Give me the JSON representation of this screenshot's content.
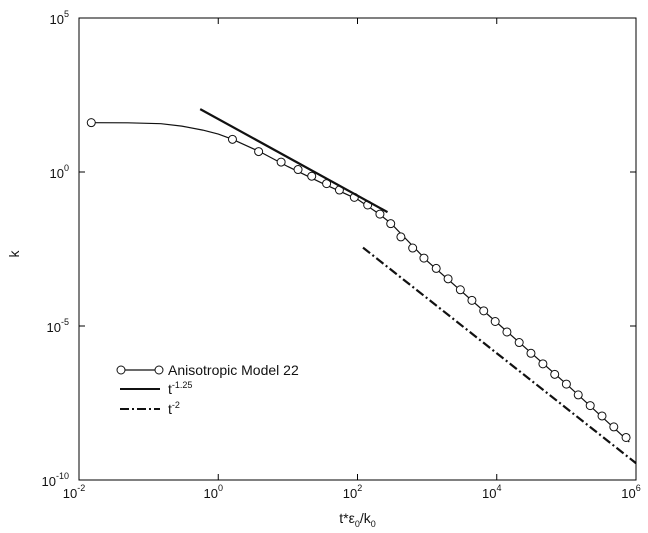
{
  "chart_data": {
    "type": "line",
    "xscale": "log",
    "yscale": "log",
    "xlim": [
      0.01,
      1000000
    ],
    "ylim": [
      1e-10,
      100000
    ],
    "xlabel": {
      "base": "t*ε",
      "sub1": "0",
      "mid": "/k",
      "sub2": "0"
    },
    "ylabel": "k",
    "x_ticks": [
      {
        "base": "10",
        "exp": "-2",
        "value": 0.01
      },
      {
        "base": "10",
        "exp": "0",
        "value": 1
      },
      {
        "base": "10",
        "exp": "2",
        "value": 100
      },
      {
        "base": "10",
        "exp": "4",
        "value": 10000
      },
      {
        "base": "10",
        "exp": "6",
        "value": 1000000
      }
    ],
    "y_ticks": [
      {
        "base": "10",
        "exp": "-10",
        "value": 1e-10
      },
      {
        "base": "10",
        "exp": "-5",
        "value": 1e-05
      },
      {
        "base": "10",
        "exp": "0",
        "value": 1
      },
      {
        "base": "10",
        "exp": "5",
        "value": 100000
      }
    ],
    "legend_position": "bottom-left",
    "grid": false,
    "series": [
      {
        "name": "Anisotropic Model 22",
        "style": "solid-circle-markers",
        "curve": [
          [
            0.015,
            40
          ],
          [
            0.05,
            39.5
          ],
          [
            0.15,
            37
          ],
          [
            0.3,
            31
          ],
          [
            0.6,
            23
          ],
          [
            1,
            17
          ],
          [
            1.6,
            11.5
          ],
          [
            4,
            4.5
          ],
          [
            10,
            1.5
          ],
          [
            30,
            0.45
          ],
          [
            100,
            0.13
          ],
          [
            200,
            0.045
          ],
          [
            300,
            0.022
          ],
          [
            1000,
            0.0013
          ],
          [
            10000,
            1.3e-05
          ],
          [
            100000,
            1.3e-07
          ],
          [
            800000,
            1.7e-09
          ]
        ],
        "markers": [
          [
            0.015,
            40
          ],
          [
            1.6,
            11.5
          ],
          [
            3.8,
            4.6
          ],
          [
            8,
            2.1
          ],
          [
            14,
            1.2
          ],
          [
            22,
            0.73
          ],
          [
            36,
            0.42
          ],
          [
            55,
            0.26
          ],
          [
            90,
            0.15
          ],
          [
            140,
            0.085
          ],
          [
            210,
            0.043
          ],
          [
            300,
            0.021
          ],
          [
            420,
            0.0078
          ],
          [
            620,
            0.0034
          ],
          [
            900,
            0.0016
          ],
          [
            1350,
            0.00074
          ],
          [
            2000,
            0.00034
          ],
          [
            3000,
            0.00015
          ],
          [
            4400,
            6.8e-05
          ],
          [
            6500,
            3.1e-05
          ],
          [
            9500,
            1.4e-05
          ],
          [
            14000,
            6.4e-06
          ],
          [
            21000,
            2.9e-06
          ],
          [
            31000,
            1.3e-06
          ],
          [
            46000,
            5.9e-07
          ],
          [
            68000,
            2.7e-07
          ],
          [
            100000,
            1.3e-07
          ],
          [
            148000,
            5.8e-08
          ],
          [
            220000,
            2.6e-08
          ],
          [
            325000,
            1.2e-08
          ],
          [
            480000,
            5.3e-09
          ],
          [
            720000,
            2.4e-09
          ]
        ]
      },
      {
        "name": "t",
        "name_sup": "-1.25",
        "style": "solid",
        "points": [
          [
            0.55,
            110
          ],
          [
            270,
            0.05
          ]
        ]
      },
      {
        "name": "t",
        "name_sup": "-2",
        "style": "dashdot",
        "points": [
          [
            120,
            0.0035
          ],
          [
            1000000,
            3.5e-10
          ]
        ]
      }
    ]
  }
}
